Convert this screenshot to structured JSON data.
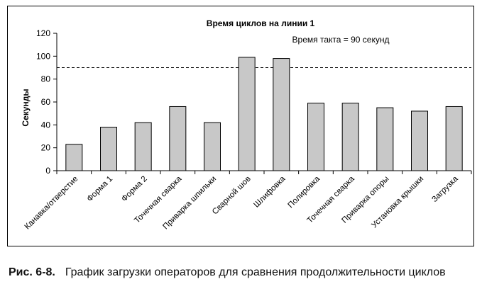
{
  "chart_data": {
    "type": "bar",
    "title": "Время циклов на линии 1",
    "ylabel": "Секунды",
    "xlabel": "",
    "ylim": [
      0,
      120
    ],
    "yticks": [
      0,
      20,
      40,
      60,
      80,
      100,
      120
    ],
    "categories": [
      "Канавка/отверстие",
      "Форма 1",
      "Форма 2",
      "Точечная сварка",
      "Приварка шпильки",
      "Сварной шов",
      "Шлифовка",
      "Полировка",
      "Точечная сварка",
      "Приварка опоры",
      "Установка крышки",
      "Загрузка"
    ],
    "values": [
      23,
      38,
      42,
      56,
      42,
      99,
      98,
      59,
      59,
      55,
      52,
      56
    ],
    "reference_line": {
      "value": 90,
      "label": "Время такта = 90 секунд",
      "style": "dashed"
    },
    "grid": false,
    "legend": "none",
    "colors": {
      "bar_fill": "#c8c8c8",
      "bar_stroke": "#000000",
      "axis": "#000000"
    }
  },
  "caption": {
    "label": "Рис. 6-8.",
    "text": "График загрузки операторов для сравнения продолжительности циклов"
  }
}
